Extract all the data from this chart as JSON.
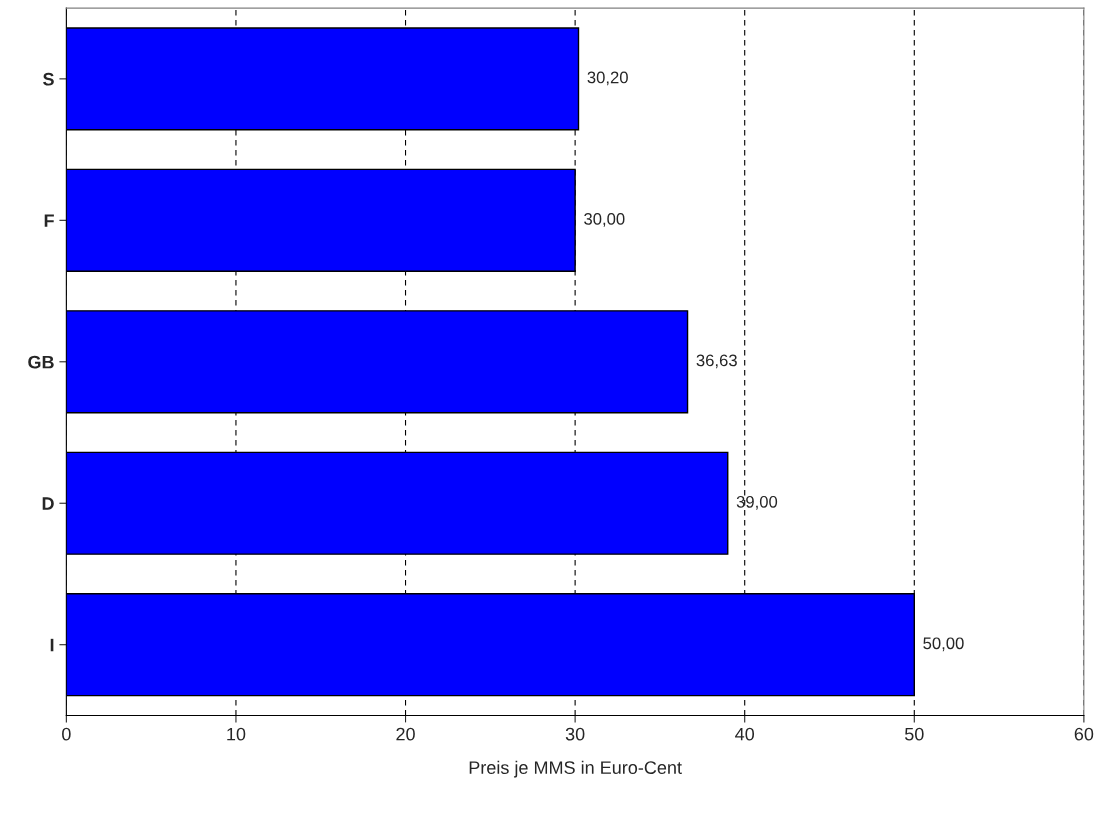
{
  "chart_data": {
    "type": "bar",
    "orientation": "horizontal",
    "categories": [
      "S",
      "F",
      "GB",
      "D",
      "I"
    ],
    "values": [
      30.2,
      30.0,
      36.63,
      39.0,
      50.0
    ],
    "value_labels": [
      "30,20",
      "30,00",
      "36,63",
      "39,00",
      "50,00"
    ],
    "colors": [
      "#0000ff",
      "#0000ff",
      "#0000ff",
      "#0000ff",
      "#0000ff"
    ],
    "xlabel": "Preis je MMS in Euro-Cent",
    "xlim": [
      0,
      60
    ],
    "xticks": [
      0,
      10,
      20,
      30,
      40,
      50,
      60
    ],
    "grid": "x",
    "legend": false
  }
}
